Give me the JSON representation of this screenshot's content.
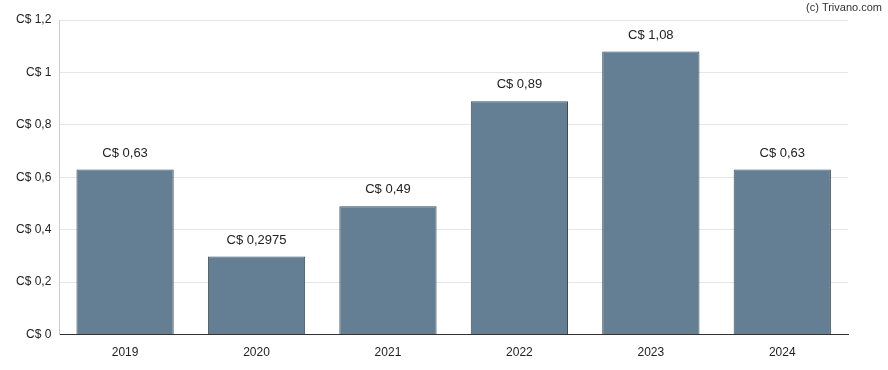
{
  "chart_data": {
    "type": "bar",
    "annotation": "(c) Trivano.com",
    "categories": [
      "2019",
      "2020",
      "2021",
      "2022",
      "2023",
      "2024"
    ],
    "values": [
      0.63,
      0.2975,
      0.49,
      0.89,
      1.08,
      0.63
    ],
    "value_labels": [
      "C$ 0,63",
      "C$ 0,2975",
      "C$ 0,49",
      "C$ 0,89",
      "C$ 1,08",
      "C$ 0,63"
    ],
    "data_labels": true,
    "color": "#647f93",
    "ylim": [
      0,
      1.2
    ],
    "yticks": [
      {
        "value": 0,
        "label": "C$ 0"
      },
      {
        "value": 0.2,
        "label": "C$ 0,2"
      },
      {
        "value": 0.4,
        "label": "C$ 0,4"
      },
      {
        "value": 0.6,
        "label": "C$ 0,6"
      },
      {
        "value": 0.8,
        "label": "C$ 0,8"
      },
      {
        "value": 1,
        "label": "C$ 1"
      },
      {
        "value": 1.2,
        "label": "C$ 1,2"
      }
    ],
    "grid": true
  }
}
